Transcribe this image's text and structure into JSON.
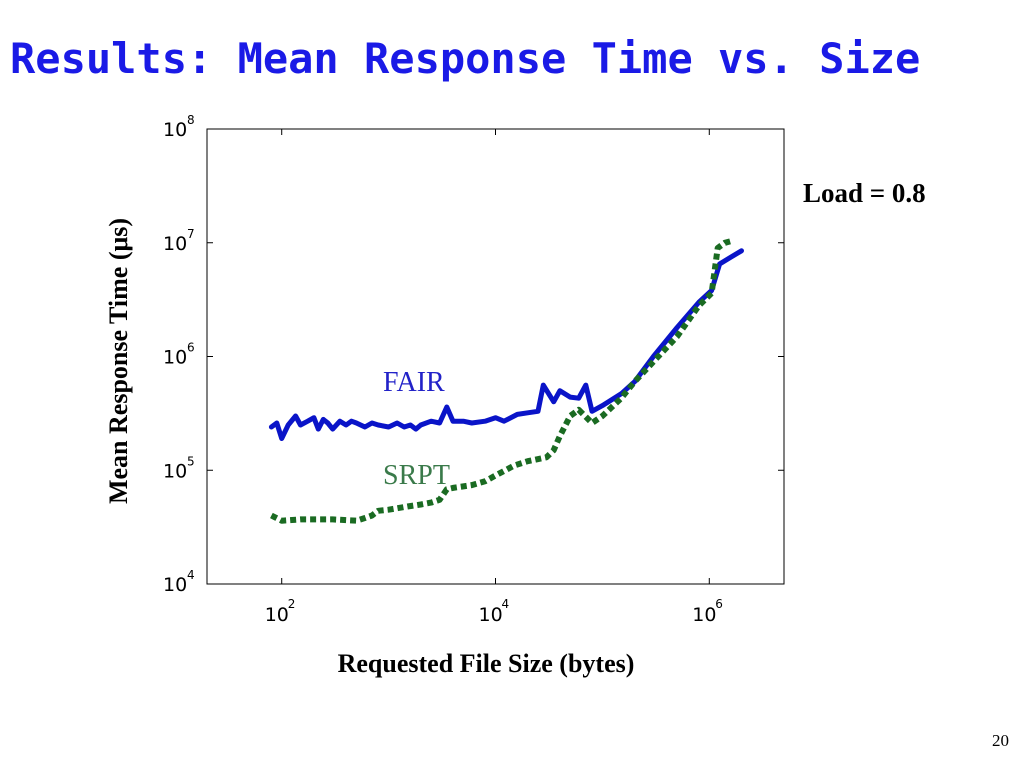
{
  "slide": {
    "title": "Results:  Mean Response Time vs. Size",
    "page_number": "20",
    "load_annotation": "Load = 0.8"
  },
  "colors": {
    "title": "#1a1ae6",
    "fair": "#0a14c8",
    "srpt": "#1a6b22",
    "srpt_label": "#3a7a4a",
    "fair_label": "#2222c8"
  },
  "chart_data": {
    "type": "line",
    "xscale": "log",
    "yscale": "log",
    "xlabel": "Requested File Size (bytes)",
    "ylabel": "Mean Response Time (μs)",
    "xlim": [
      20,
      5000000
    ],
    "ylim": [
      10000,
      100000000
    ],
    "x_ticks": [
      {
        "base": "10",
        "exp": "2",
        "value": 100
      },
      {
        "base": "10",
        "exp": "4",
        "value": 10000
      },
      {
        "base": "10",
        "exp": "6",
        "value": 1000000
      }
    ],
    "y_ticks": [
      {
        "base": "10",
        "exp": "4",
        "value": 10000
      },
      {
        "base": "10",
        "exp": "5",
        "value": 100000
      },
      {
        "base": "10",
        "exp": "6",
        "value": 1000000
      },
      {
        "base": "10",
        "exp": "7",
        "value": 10000000
      },
      {
        "base": "10",
        "exp": "8",
        "value": 100000000
      }
    ],
    "grid": false,
    "series": [
      {
        "name": "FAIR",
        "color": "#0a14c8",
        "style": "solid",
        "points": [
          [
            80,
            240000
          ],
          [
            90,
            260000
          ],
          [
            100,
            190000
          ],
          [
            115,
            250000
          ],
          [
            135,
            300000
          ],
          [
            150,
            250000
          ],
          [
            175,
            270000
          ],
          [
            200,
            290000
          ],
          [
            220,
            230000
          ],
          [
            245,
            280000
          ],
          [
            270,
            260000
          ],
          [
            300,
            230000
          ],
          [
            350,
            270000
          ],
          [
            400,
            250000
          ],
          [
            450,
            270000
          ],
          [
            500,
            260000
          ],
          [
            600,
            240000
          ],
          [
            700,
            260000
          ],
          [
            800,
            250000
          ],
          [
            1000,
            240000
          ],
          [
            1200,
            260000
          ],
          [
            1400,
            240000
          ],
          [
            1600,
            250000
          ],
          [
            1800,
            230000
          ],
          [
            2000,
            250000
          ],
          [
            2500,
            270000
          ],
          [
            3000,
            260000
          ],
          [
            3500,
            360000
          ],
          [
            4000,
            270000
          ],
          [
            5000,
            270000
          ],
          [
            6000,
            260000
          ],
          [
            8000,
            270000
          ],
          [
            10000,
            290000
          ],
          [
            12000,
            270000
          ],
          [
            16000,
            310000
          ],
          [
            20000,
            320000
          ],
          [
            25000,
            330000
          ],
          [
            28000,
            560000
          ],
          [
            35000,
            400000
          ],
          [
            40000,
            500000
          ],
          [
            50000,
            440000
          ],
          [
            60000,
            430000
          ],
          [
            70000,
            560000
          ],
          [
            80000,
            330000
          ],
          [
            100000,
            370000
          ],
          [
            150000,
            470000
          ],
          [
            200000,
            600000
          ],
          [
            300000,
            1000000
          ],
          [
            500000,
            1800000
          ],
          [
            800000,
            3000000
          ],
          [
            1050000,
            3800000
          ],
          [
            1250000,
            6500000
          ],
          [
            1600000,
            7500000
          ],
          [
            2000000,
            8500000
          ]
        ]
      },
      {
        "name": "SRPT",
        "color": "#1a6b22",
        "style": "dotted",
        "points": [
          [
            80,
            40000
          ],
          [
            100,
            36000
          ],
          [
            150,
            37000
          ],
          [
            200,
            37000
          ],
          [
            300,
            37000
          ],
          [
            500,
            36000
          ],
          [
            600,
            38000
          ],
          [
            700,
            40000
          ],
          [
            800,
            44000
          ],
          [
            1000,
            45000
          ],
          [
            1500,
            48000
          ],
          [
            2000,
            50000
          ],
          [
            2500,
            52000
          ],
          [
            3000,
            55000
          ],
          [
            3500,
            68000
          ],
          [
            4000,
            70000
          ],
          [
            6000,
            74000
          ],
          [
            8000,
            80000
          ],
          [
            10000,
            90000
          ],
          [
            15000,
            110000
          ],
          [
            20000,
            120000
          ],
          [
            30000,
            130000
          ],
          [
            35000,
            150000
          ],
          [
            40000,
            200000
          ],
          [
            50000,
            300000
          ],
          [
            60000,
            340000
          ],
          [
            80000,
            260000
          ],
          [
            100000,
            300000
          ],
          [
            150000,
            430000
          ],
          [
            200000,
            600000
          ],
          [
            300000,
            900000
          ],
          [
            500000,
            1500000
          ],
          [
            800000,
            2800000
          ],
          [
            1050000,
            3600000
          ],
          [
            1200000,
            9000000
          ],
          [
            1400000,
            10000000
          ],
          [
            1700000,
            10500000
          ]
        ]
      }
    ],
    "annotations": [
      {
        "text": "FAIR",
        "series": "FAIR"
      },
      {
        "text": "SRPT",
        "series": "SRPT"
      }
    ]
  }
}
